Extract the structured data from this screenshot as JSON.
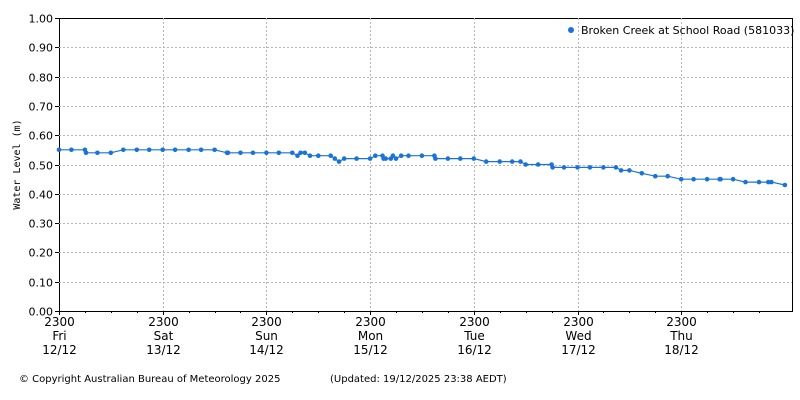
{
  "chart_data": {
    "type": "scatter",
    "ylabel": "Water Level (m)",
    "ylim": [
      0,
      1.0
    ],
    "yticks": [
      "0.00",
      "0.10",
      "0.20",
      "0.30",
      "0.40",
      "0.50",
      "0.60",
      "0.70",
      "0.80",
      "0.90",
      "1.00"
    ],
    "x_unit": "days since Fri 12/12 23:00",
    "xlim": [
      0,
      7.0
    ],
    "xticks": [
      {
        "time": "2300",
        "day": "Fri",
        "date": "12/12"
      },
      {
        "time": "2300",
        "day": "Sat",
        "date": "13/12"
      },
      {
        "time": "2300",
        "day": "Sun",
        "date": "14/12"
      },
      {
        "time": "2300",
        "day": "Mon",
        "date": "15/12"
      },
      {
        "time": "2300",
        "day": "Tue",
        "date": "16/12"
      },
      {
        "time": "2300",
        "day": "Wed",
        "date": "17/12"
      },
      {
        "time": "2300",
        "day": "Thu",
        "date": "18/12"
      }
    ],
    "grid": true,
    "legend_position": "top-right",
    "series": [
      {
        "name": "Broken Creek at School Road (581033)",
        "color": "#1a73d9",
        "x": [
          0.0,
          0.12,
          0.25,
          0.26,
          0.37,
          0.5,
          0.62,
          0.75,
          0.87,
          1.0,
          1.12,
          1.25,
          1.37,
          1.5,
          1.62,
          1.63,
          1.75,
          1.87,
          2.0,
          2.12,
          2.25,
          2.3,
          2.33,
          2.37,
          2.42,
          2.5,
          2.62,
          2.66,
          2.7,
          2.75,
          2.87,
          3.0,
          3.05,
          3.12,
          3.13,
          3.15,
          3.2,
          3.22,
          3.25,
          3.3,
          3.37,
          3.5,
          3.62,
          3.63,
          3.75,
          3.87,
          4.0,
          4.12,
          4.25,
          4.37,
          4.45,
          4.5,
          4.62,
          4.75,
          4.76,
          4.87,
          5.0,
          5.12,
          5.25,
          5.37,
          5.42,
          5.5,
          5.62,
          5.75,
          5.87,
          6.0,
          6.12,
          6.25,
          6.37,
          6.38,
          6.5,
          6.62,
          6.75,
          6.84,
          6.87,
          7.0
        ],
        "y": [
          0.55,
          0.55,
          0.55,
          0.54,
          0.54,
          0.54,
          0.55,
          0.55,
          0.55,
          0.55,
          0.55,
          0.55,
          0.55,
          0.55,
          0.54,
          0.54,
          0.54,
          0.54,
          0.54,
          0.54,
          0.54,
          0.53,
          0.54,
          0.54,
          0.53,
          0.53,
          0.53,
          0.52,
          0.51,
          0.52,
          0.52,
          0.52,
          0.53,
          0.53,
          0.52,
          0.52,
          0.52,
          0.53,
          0.52,
          0.53,
          0.53,
          0.53,
          0.53,
          0.52,
          0.52,
          0.52,
          0.52,
          0.51,
          0.51,
          0.51,
          0.51,
          0.5,
          0.5,
          0.5,
          0.49,
          0.49,
          0.49,
          0.49,
          0.49,
          0.49,
          0.48,
          0.48,
          0.47,
          0.46,
          0.46,
          0.45,
          0.45,
          0.45,
          0.45,
          0.45,
          0.45,
          0.44,
          0.44,
          0.44,
          0.44,
          0.43
        ]
      }
    ]
  },
  "footer": {
    "copyright": "© Copyright Australian Bureau of Meteorology 2025",
    "updated": "(Updated: 19/12/2025 23:38 AEDT)"
  }
}
